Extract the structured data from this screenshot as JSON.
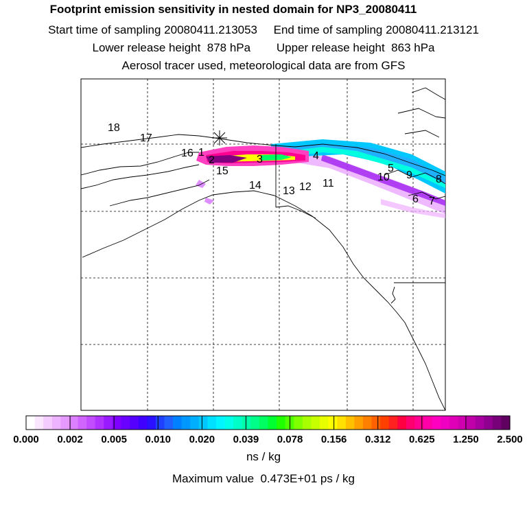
{
  "header": {
    "title": "Footprint emission sensitivity in nested domain for NP3_20080411",
    "line1": "Start time of sampling 20080411.213053     End time of sampling 20080411.213121",
    "line2": "Lower release height  878 hPa        Upper release height  863 hPa",
    "line3": "Aerosol tracer used, meteorological data are from GFS"
  },
  "map": {
    "release_marker": "asterisk-icon",
    "point_labels": [
      "18",
      "17",
      "16",
      "1",
      "2",
      "15",
      "3",
      "4",
      "14",
      "13",
      "12",
      "11",
      "10",
      "5",
      "9",
      "8",
      "6",
      "7"
    ]
  },
  "colorbar": {
    "units": "ns / kg",
    "tick_labels": [
      "0.000",
      "0.002",
      "0.005",
      "0.010",
      "0.020",
      "0.039",
      "0.078",
      "0.156",
      "0.312",
      "0.625",
      "1.250",
      "2.500"
    ],
    "colors": [
      "#ffffff",
      "#fbe6ff",
      "#f5ccff",
      "#eeb3ff",
      "#e699ff",
      "#dc80ff",
      "#d066ff",
      "#c24dff",
      "#b033ff",
      "#9a1aff",
      "#8000ff",
      "#6a00ff",
      "#5500ff",
      "#4000ff",
      "#2b10ff",
      "#2040ff",
      "#1f60ff",
      "#0080ff",
      "#0098ff",
      "#00b0ff",
      "#00c8ff",
      "#00e0ff",
      "#00f5ff",
      "#00ffe8",
      "#00ffc8",
      "#00ffa8",
      "#00ff88",
      "#00ff60",
      "#00ff30",
      "#20ff00",
      "#50ff00",
      "#80ff00",
      "#a8ff00",
      "#c8ff00",
      "#e8ff00",
      "#ffff00",
      "#ffe000",
      "#ffc000",
      "#ffa000",
      "#ff8000",
      "#ff6000",
      "#ff4000",
      "#ff2020",
      "#ff0040",
      "#ff0070",
      "#ff0090",
      "#ff00a8",
      "#ff00c0",
      "#f000c0",
      "#e000b8",
      "#d000b0",
      "#c000a8",
      "#a800a0",
      "#900090",
      "#780078",
      "#600060"
    ]
  },
  "footer": {
    "max_value": "Maximum value  0.473E+01 ps / kg"
  }
}
